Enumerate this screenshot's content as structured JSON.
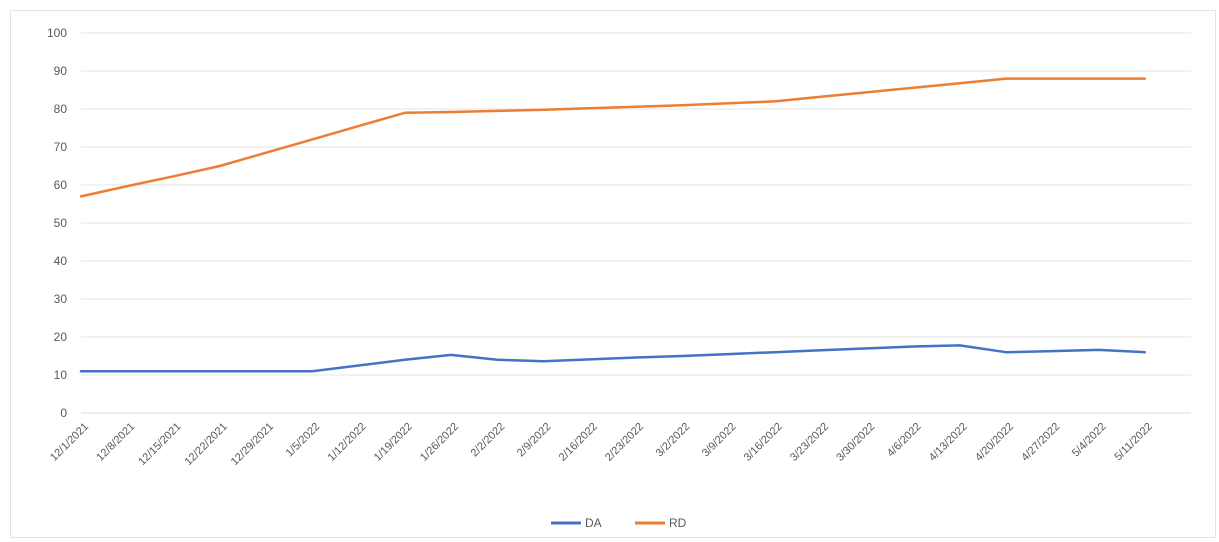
{
  "chart_data": {
    "type": "line",
    "title": "",
    "xlabel": "",
    "ylabel": "",
    "ylim": [
      0,
      100
    ],
    "y_ticks": [
      0,
      10,
      20,
      30,
      40,
      50,
      60,
      70,
      80,
      90,
      100
    ],
    "categories": [
      "12/1/2021",
      "12/8/2021",
      "12/15/2021",
      "12/22/2021",
      "12/29/2021",
      "1/5/2022",
      "1/12/2022",
      "1/19/2022",
      "1/26/2022",
      "2/2/2022",
      "2/9/2022",
      "2/16/2022",
      "2/23/2022",
      "3/2/2022",
      "3/9/2022",
      "3/16/2022",
      "3/23/2022",
      "3/30/2022",
      "4/6/2022",
      "4/13/2022",
      "4/20/2022",
      "4/27/2022",
      "5/4/2022",
      "5/11/2022"
    ],
    "grid": true,
    "legend_position": "bottom",
    "series": [
      {
        "name": "DA",
        "color": "#4472c4",
        "values": [
          11,
          11,
          11,
          11,
          11,
          11,
          12.5,
          14,
          15.3,
          14,
          13.6,
          14.1,
          14.6,
          15,
          15.5,
          16,
          16.5,
          17,
          17.5,
          17.8,
          16,
          16.3,
          16.6,
          16
        ]
      },
      {
        "name": "RD",
        "color": "#ed7d31",
        "values": [
          57,
          59.7,
          62.3,
          65,
          68.5,
          72,
          75.5,
          79,
          79.2,
          79.5,
          79.8,
          80.2,
          80.6,
          81,
          81.5,
          82,
          83.2,
          84.4,
          85.6,
          86.8,
          88,
          88,
          88,
          88
        ]
      }
    ]
  }
}
